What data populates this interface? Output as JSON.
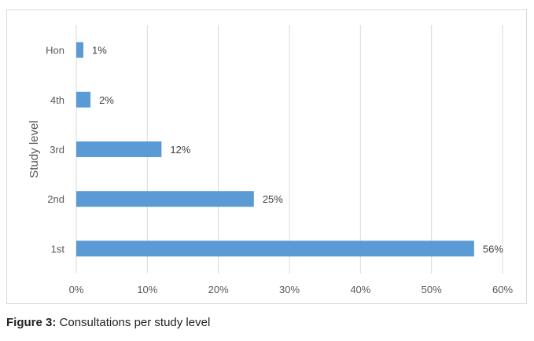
{
  "caption": {
    "label": "Figure 3:",
    "text": "Consultations per study level"
  },
  "chart_data": {
    "type": "bar",
    "orientation": "horizontal",
    "ylabel": "Study level",
    "xlabel": "",
    "categories": [
      "Hon",
      "4th",
      "3rd",
      "2nd",
      "1st"
    ],
    "values": [
      1,
      2,
      12,
      25,
      56
    ],
    "data_labels": [
      "1%",
      "2%",
      "12%",
      "25%",
      "56%"
    ],
    "xlim": [
      0,
      60
    ],
    "xticks": [
      0,
      10,
      20,
      30,
      40,
      50,
      60
    ],
    "xtick_labels": [
      "0%",
      "10%",
      "20%",
      "30%",
      "40%",
      "50%",
      "60%"
    ],
    "grid": "vertical",
    "legend": "none",
    "bar_color": "#5b9bd5",
    "grid_color": "#d9d9d9"
  }
}
